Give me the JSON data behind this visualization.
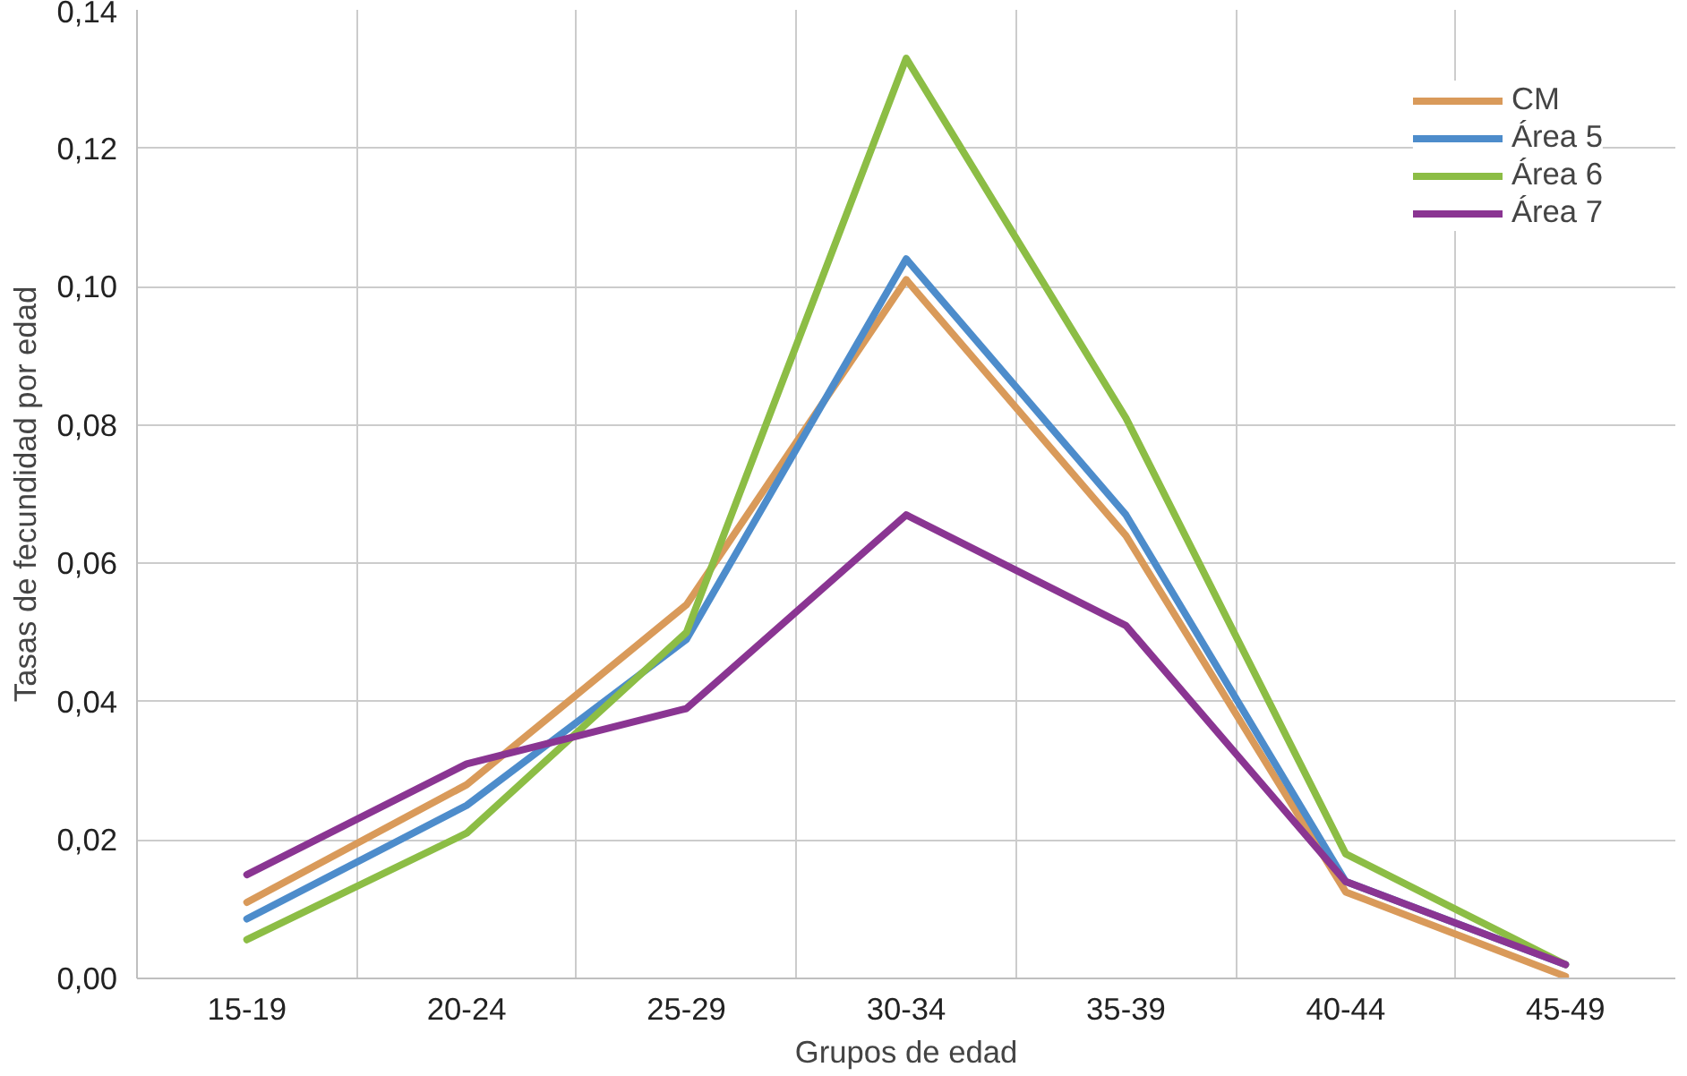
{
  "chart_data": {
    "type": "line",
    "xlabel": "Grupos de edad",
    "ylabel": "Tasas de fecundidad por edad",
    "categories": [
      "15-19",
      "20-24",
      "25-29",
      "30-34",
      "35-39",
      "40-44",
      "45-49"
    ],
    "series": [
      {
        "name": "CM",
        "color": "#d99a5a",
        "values": [
          0.011,
          0.028,
          0.054,
          0.101,
          0.064,
          0.0125,
          0.0003
        ]
      },
      {
        "name": "Área 5",
        "color": "#4d8ccb",
        "values": [
          0.0086,
          0.025,
          0.049,
          0.104,
          0.067,
          0.014,
          0.002
        ]
      },
      {
        "name": "Área 6",
        "color": "#8cbd45",
        "values": [
          0.0056,
          0.021,
          0.05,
          0.133,
          0.081,
          0.018,
          0.002
        ]
      },
      {
        "name": "Área 7",
        "color": "#8a3592",
        "values": [
          0.015,
          0.031,
          0.039,
          0.067,
          0.051,
          0.014,
          0.002
        ]
      }
    ],
    "ylim": [
      0,
      0.14
    ],
    "yticks": [
      {
        "value": 0,
        "label": "0,00"
      },
      {
        "value": 0.02,
        "label": "0,02"
      },
      {
        "value": 0.04,
        "label": "0,04"
      },
      {
        "value": 0.06,
        "label": "0,06"
      },
      {
        "value": 0.08,
        "label": "0,08"
      },
      {
        "value": 0.1,
        "label": "0,10"
      },
      {
        "value": 0.12,
        "label": "0,12"
      },
      {
        "value": 0.14,
        "label": "0,14"
      }
    ],
    "grid": true,
    "legend": "top right",
    "marker": "none",
    "line_style": "solid"
  }
}
